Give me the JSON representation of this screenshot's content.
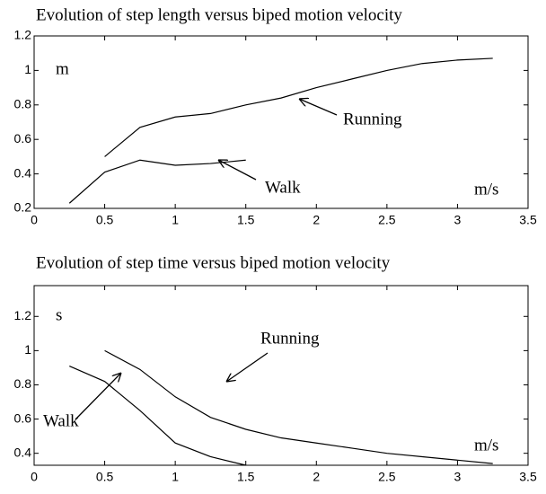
{
  "chart_data": [
    {
      "type": "line",
      "title": "Evolution of step length versus biped motion velocity",
      "ylabel": "m",
      "xlabel": "m/s",
      "xlim": [
        0,
        3.5
      ],
      "xticks": [
        0,
        0.5,
        1,
        1.5,
        2,
        2.5,
        3,
        3.5
      ],
      "ylim": [
        0.2,
        1.2
      ],
      "yticks": [
        0.2,
        0.4,
        0.6,
        0.8,
        1,
        1.2
      ],
      "series": [
        {
          "name": "Running",
          "color": "#000000",
          "x": [
            0.5,
            0.75,
            1,
            1.25,
            1.5,
            1.75,
            2,
            2.25,
            2.5,
            2.75,
            3,
            3.25
          ],
          "values": [
            0.5,
            0.67,
            0.73,
            0.75,
            0.8,
            0.84,
            0.9,
            0.95,
            1.0,
            1.04,
            1.06,
            1.07
          ]
        },
        {
          "name": "Walk",
          "color": "#000000",
          "x": [
            0.25,
            0.5,
            0.75,
            1,
            1.25,
            1.5
          ],
          "values": [
            0.23,
            0.41,
            0.48,
            0.45,
            0.46,
            0.48
          ]
        }
      ]
    },
    {
      "type": "line",
      "title": "Evolution of step time versus biped motion velocity",
      "ylabel": "s",
      "xlabel": "m/s",
      "xlim": [
        0,
        3.5
      ],
      "xticks": [
        0,
        0.5,
        1,
        1.5,
        2,
        2.5,
        3,
        3.5
      ],
      "ylim": [
        0.33,
        1.38
      ],
      "yticks": [
        0.4,
        0.6,
        0.8,
        1,
        1.2
      ],
      "series": [
        {
          "name": "Running",
          "color": "#000000",
          "x": [
            0.5,
            0.75,
            1,
            1.25,
            1.5,
            1.75,
            2,
            2.25,
            2.5,
            2.75,
            3,
            3.25
          ],
          "values": [
            1.0,
            0.89,
            0.73,
            0.61,
            0.54,
            0.49,
            0.46,
            0.43,
            0.4,
            0.38,
            0.36,
            0.34
          ]
        },
        {
          "name": "Walk",
          "color": "#000000",
          "x": [
            0.25,
            0.5,
            0.75,
            1,
            1.25,
            1.5
          ],
          "values": [
            0.91,
            0.82,
            0.65,
            0.46,
            0.38,
            0.33
          ]
        }
      ]
    }
  ]
}
